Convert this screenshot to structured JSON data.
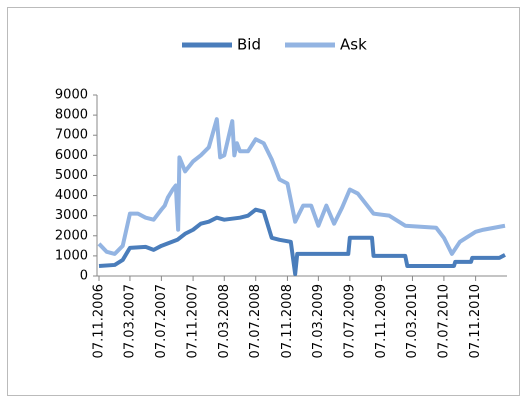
{
  "chart_data": {
    "type": "line",
    "legend": "top",
    "xlim": [
      "07.11.2006",
      "01.03.2011"
    ],
    "xticks": [
      "07.11.2006",
      "07.03.2007",
      "07.07.2007",
      "07.11.2007",
      "07.03.2008",
      "07.07.2008",
      "07.11.2008",
      "07.03.2009",
      "07.07.2009",
      "07.11.2009",
      "07.03.2010",
      "07.07.2010",
      "07.11.2010"
    ],
    "ylim": [
      0,
      9000
    ],
    "yticks": [
      0,
      1000,
      2000,
      3000,
      4000,
      5000,
      6000,
      7000,
      8000,
      9000
    ],
    "series": [
      {
        "name": "Bid",
        "color": "#4a7dbb",
        "x": [
          "07.11.2006",
          "07.01.2007",
          "07.02.2007",
          "07.03.2007",
          "07.05.2007",
          "07.06.2007",
          "07.07.2007",
          "07.09.2007",
          "07.10.2007",
          "07.11.2007",
          "07.12.2007",
          "07.01.2008",
          "07.02.2008",
          "07.03.2008",
          "07.05.2008",
          "07.06.2008",
          "07.07.2008",
          "07.08.2008",
          "07.09.2008",
          "07.10.2008",
          "20.11.2008",
          "07.12.2008",
          "15.12.2008",
          "01.07.2009",
          "07.07.2009",
          "01.10.2009",
          "07.10.2009",
          "07.02.2010",
          "15.02.2010",
          "15.08.2010",
          "20.08.2010",
          "20.10.2010",
          "25.10.2010",
          "07.02.2011",
          "01.03.2011"
        ],
        "values": [
          500,
          550,
          800,
          1400,
          1450,
          1300,
          1500,
          1800,
          2100,
          2300,
          2600,
          2700,
          2900,
          2800,
          2900,
          3000,
          3300,
          3200,
          1900,
          1800,
          1700,
          100,
          1100,
          1100,
          1900,
          1900,
          1000,
          1000,
          500,
          500,
          700,
          700,
          900,
          900,
          1050
        ]
      },
      {
        "name": "Ask",
        "color": "#93b4e2",
        "x": [
          "07.11.2006",
          "07.12.2006",
          "07.01.2007",
          "07.02.2007",
          "07.03.2007",
          "07.04.2007",
          "07.05.2007",
          "07.06.2007",
          "07.07.2007",
          "20.07.2007",
          "01.08.2007",
          "20.08.2007",
          "01.09.2007",
          "10.09.2007",
          "15.09.2007",
          "07.10.2007",
          "07.11.2007",
          "07.12.2007",
          "07.01.2008",
          "07.02.2008",
          "20.02.2008",
          "07.03.2008",
          "07.04.2008",
          "15.04.2008",
          "25.04.2008",
          "07.05.2008",
          "07.06.2008",
          "07.07.2008",
          "07.08.2008",
          "07.09.2008",
          "07.10.2008",
          "07.11.2008",
          "07.12.2008",
          "07.01.2009",
          "07.02.2009",
          "07.03.2009",
          "07.04.2009",
          "07.05.2009",
          "07.06.2009",
          "07.07.2009",
          "07.08.2009",
          "07.10.2009",
          "07.12.2009",
          "07.02.2010",
          "07.06.2010",
          "07.07.2010",
          "07.08.2010",
          "07.09.2010",
          "07.11.2010",
          "07.12.2010",
          "01.03.2011"
        ],
        "values": [
          1600,
          1200,
          1100,
          1500,
          3100,
          3100,
          2900,
          2800,
          3300,
          3500,
          3900,
          4300,
          4500,
          2300,
          5900,
          5200,
          5700,
          6000,
          6400,
          7800,
          5900,
          6000,
          7700,
          6000,
          6600,
          6200,
          6200,
          6800,
          6600,
          5800,
          4800,
          4600,
          2700,
          3500,
          3500,
          2500,
          3500,
          2600,
          3400,
          4300,
          4100,
          3100,
          3000,
          2500,
          2400,
          1900,
          1100,
          1700,
          2200,
          2300,
          2500
        ]
      }
    ]
  }
}
